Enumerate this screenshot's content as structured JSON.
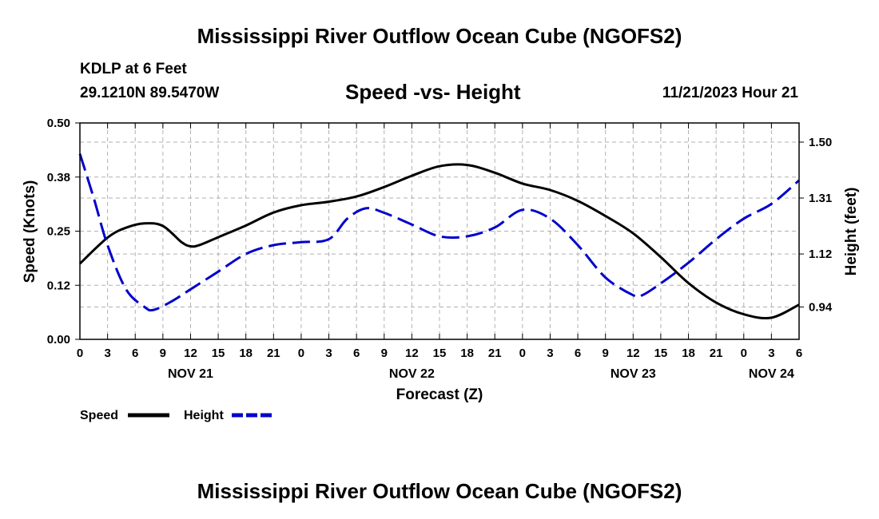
{
  "page": {
    "title": "Mississippi River Outflow Ocean Cube (NGOFS2)",
    "footer_title": "Mississippi River Outflow Ocean Cube (NGOFS2)",
    "station": "KDLP at 6 Feet",
    "coordinates": "29.1210N  89.5470W",
    "date": "11/21/2023 Hour 21"
  },
  "chart_data": {
    "type": "line",
    "title": "Speed -vs- Height",
    "xlabel": "Forecast (Z)",
    "ylabel_left": "Speed (Knots)",
    "ylabel_right": "Height (feet)",
    "x_range": [
      0,
      78
    ],
    "x_ticks": [
      0,
      3,
      6,
      9,
      12,
      15,
      18,
      21,
      24,
      27,
      30,
      33,
      36,
      39,
      42,
      45,
      48,
      51,
      54,
      57,
      60,
      63,
      66,
      69,
      72,
      75,
      78
    ],
    "x_tick_labels": [
      "0",
      "3",
      "6",
      "9",
      "12",
      "15",
      "18",
      "21",
      "0",
      "3",
      "6",
      "9",
      "12",
      "15",
      "18",
      "21",
      "0",
      "3",
      "6",
      "9",
      "12",
      "15",
      "18",
      "21",
      "0",
      "3",
      "6"
    ],
    "date_labels": [
      {
        "x": 12,
        "label": "NOV 21"
      },
      {
        "x": 36,
        "label": "NOV 22"
      },
      {
        "x": 60,
        "label": "NOV 23"
      },
      {
        "x": 75,
        "label": "NOV 24"
      }
    ],
    "y_left": {
      "range": [
        0,
        0.5
      ],
      "ticks": [
        0.0,
        0.125,
        0.25,
        0.375,
        0.5
      ],
      "tick_labels": [
        "0.00",
        "0.12",
        "0.25",
        "0.38",
        "0.50"
      ]
    },
    "y_right": {
      "range": [
        0.83,
        1.565
      ],
      "ticks": [
        0.94,
        1.12,
        1.31,
        1.5
      ],
      "tick_labels": [
        "0.94",
        "1.12",
        "1.31",
        "1.50"
      ]
    },
    "grid": true,
    "legend_position": "bottom-left",
    "series": [
      {
        "name": "Speed",
        "axis": "left",
        "color": "#000000",
        "dash": "solid",
        "x": [
          0,
          3,
          5,
          7,
          9,
          11,
          12,
          13,
          15,
          18,
          21,
          24,
          27,
          30,
          33,
          36,
          39,
          42,
          45,
          48,
          51,
          54,
          57,
          60,
          63,
          66,
          69,
          72,
          75,
          78
        ],
        "values": [
          0.175,
          0.235,
          0.258,
          0.268,
          0.262,
          0.225,
          0.215,
          0.218,
          0.236,
          0.263,
          0.293,
          0.31,
          0.318,
          0.33,
          0.352,
          0.378,
          0.4,
          0.403,
          0.385,
          0.36,
          0.345,
          0.32,
          0.285,
          0.245,
          0.19,
          0.13,
          0.085,
          0.058,
          0.05,
          0.08
        ]
      },
      {
        "name": "Height",
        "axis": "right",
        "color": "#0000cc",
        "dash": "dashed",
        "x": [
          0,
          1.5,
          3,
          5,
          7,
          8,
          10,
          12,
          15,
          18,
          21,
          24,
          27,
          29,
          31,
          33,
          36,
          39,
          42,
          45,
          48,
          51,
          54,
          57,
          60,
          61,
          63,
          66,
          69,
          72,
          75,
          78
        ],
        "values": [
          1.46,
          1.31,
          1.15,
          1.0,
          0.94,
          0.93,
          0.96,
          1.0,
          1.06,
          1.12,
          1.15,
          1.16,
          1.17,
          1.24,
          1.275,
          1.26,
          1.22,
          1.18,
          1.18,
          1.21,
          1.27,
          1.24,
          1.15,
          1.04,
          0.98,
          0.98,
          1.02,
          1.09,
          1.17,
          1.24,
          1.29,
          1.37
        ]
      }
    ]
  }
}
